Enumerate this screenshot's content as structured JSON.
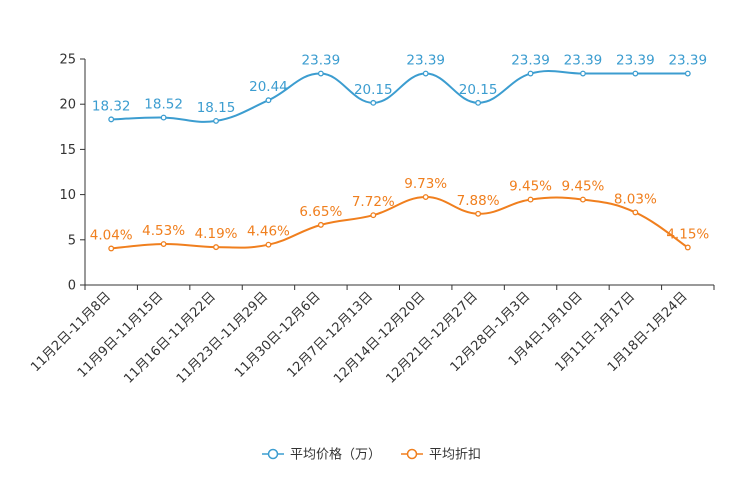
{
  "chart_data": {
    "type": "line",
    "title": "",
    "xlabel": "",
    "ylabel": "",
    "ylim": [
      0,
      25
    ],
    "yticks": [
      0,
      5,
      10,
      15,
      20,
      25
    ],
    "grid": false,
    "legend_position": "bottom-center",
    "categories": [
      "11月2日-11月8日",
      "11月9日-11月15日",
      "11月16日-11月22日",
      "11月23日-11月29日",
      "11月30日-12月6日",
      "12月7日-12月13日",
      "12月14日-12月20日",
      "12月21日-12月27日",
      "12月28日-1月3日",
      "1月4日-1月10日",
      "1月11日-1月17日",
      "1月18日-1月24日"
    ],
    "series": [
      {
        "name": "平均价格（万）",
        "color": "#3c9dd0",
        "values": [
          18.32,
          18.52,
          18.15,
          20.44,
          23.39,
          20.15,
          23.39,
          20.15,
          23.39,
          23.39,
          23.39,
          23.39
        ],
        "labels": [
          "18.32",
          "18.52",
          "18.15",
          "20.44",
          "23.39",
          "20.15",
          "23.39",
          "20.15",
          "23.39",
          "23.39",
          "23.39",
          "23.39"
        ]
      },
      {
        "name": "平均折扣",
        "color": "#f07f1e",
        "values": [
          4.04,
          4.53,
          4.19,
          4.46,
          6.65,
          7.72,
          9.73,
          7.88,
          9.45,
          9.45,
          8.03,
          4.15
        ],
        "labels": [
          "4.04%",
          "4.53%",
          "4.19%",
          "4.46%",
          "6.65%",
          "7.72%",
          "9.73%",
          "7.88%",
          "9.45%",
          "9.45%",
          "8.03%",
          "4.15%"
        ]
      }
    ]
  }
}
